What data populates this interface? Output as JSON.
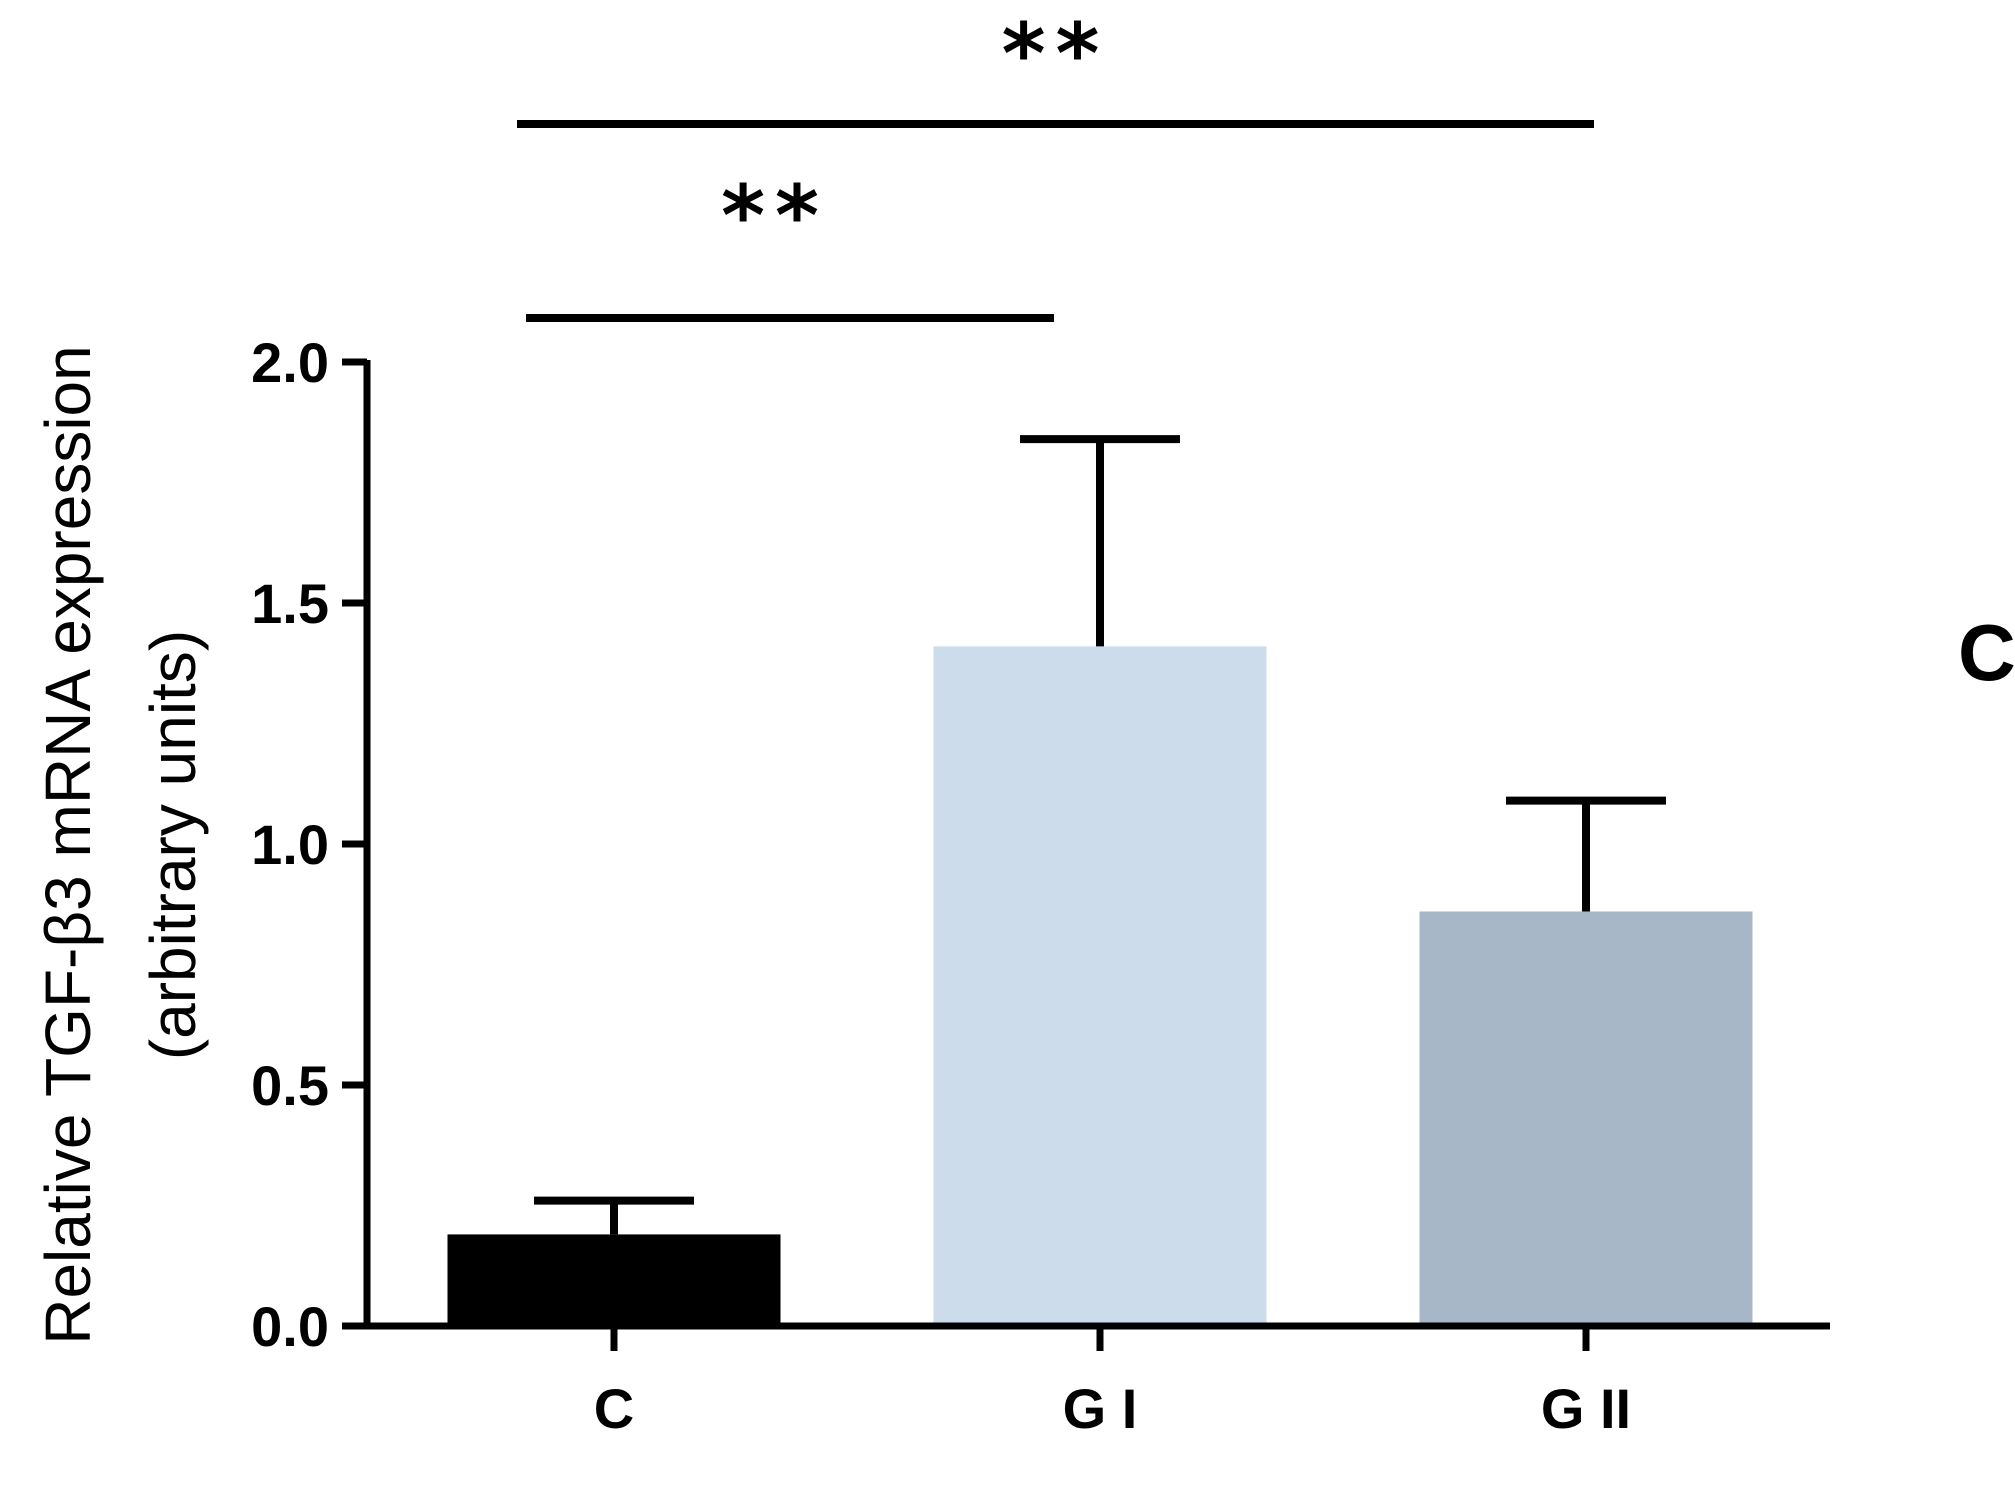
{
  "chart_data": {
    "type": "bar",
    "categories": [
      "C",
      "G I",
      "G II"
    ],
    "values": [
      0.19,
      1.41,
      0.86
    ],
    "errors": [
      0.07,
      0.43,
      0.23
    ],
    "colors": [
      "#000000",
      "#cddceb",
      "#a8b7c8"
    ],
    "title": "",
    "xlabel": "",
    "ylabel_line1": "Relative TGF-β3 mRNA expression",
    "ylabel_line2": "(arbitrary units)",
    "ylim": [
      0,
      2.0
    ],
    "yticks": [
      "0.0",
      "0.5",
      "1.0",
      "1.5",
      "2.0"
    ],
    "significance": [
      {
        "from": "C",
        "to": "G I",
        "label": "**"
      },
      {
        "from": "C",
        "to": "G II",
        "label": "**"
      }
    ],
    "grid": false
  },
  "panel_label": "C"
}
